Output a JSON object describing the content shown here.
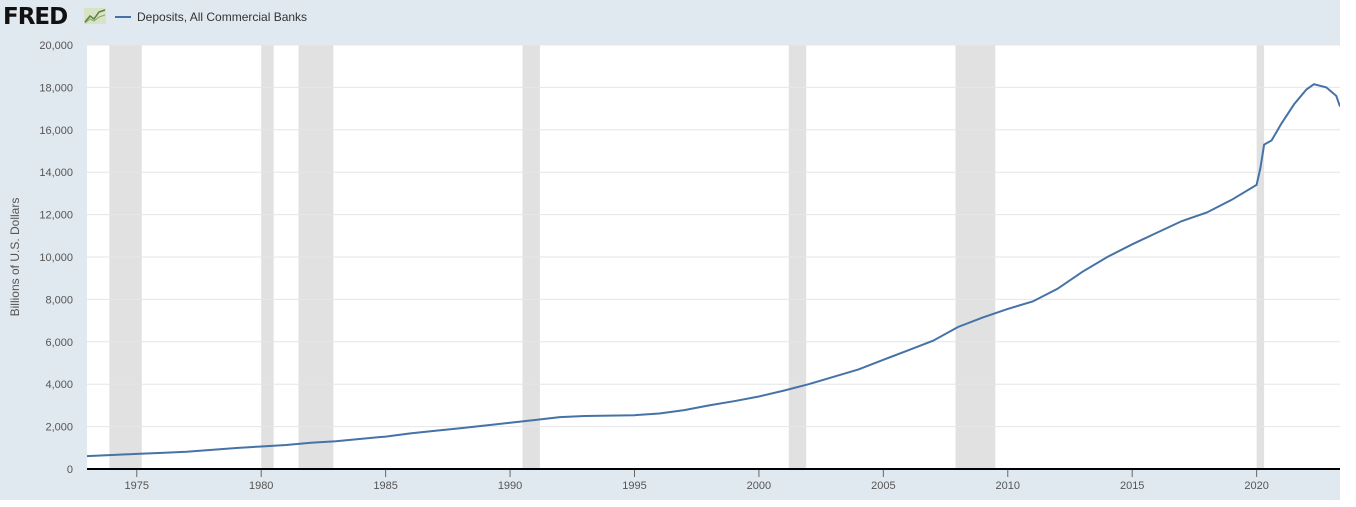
{
  "header": {
    "logo_text": "FRED",
    "logo_icon": "line-chart-icon"
  },
  "colors": {
    "series": "#4572a7",
    "recession": "#e1e1e1",
    "frame": "#e1e9f0"
  },
  "chart_data": {
    "type": "line",
    "title": "",
    "xlabel": "",
    "ylabel": "Billions of U.S. Dollars",
    "xlim": [
      1973.0,
      2023.35
    ],
    "ylim": [
      0,
      20000
    ],
    "x_ticks": [
      1975,
      1980,
      1985,
      1990,
      1995,
      2000,
      2005,
      2010,
      2015,
      2020
    ],
    "y_ticks": [
      0,
      2000,
      4000,
      6000,
      8000,
      10000,
      12000,
      14000,
      16000,
      18000,
      20000
    ],
    "y_tick_labels": [
      "0",
      "2,000",
      "4,000",
      "6,000",
      "8,000",
      "10,000",
      "12,000",
      "14,000",
      "16,000",
      "18,000",
      "20,000"
    ],
    "grid": "horizontal",
    "legend_position": "top-left",
    "recessions": [
      [
        1973.9,
        1975.2
      ],
      [
        1980.0,
        1980.5
      ],
      [
        1981.5,
        1982.9
      ],
      [
        1990.5,
        1991.2
      ],
      [
        2001.2,
        2001.9
      ],
      [
        2007.9,
        2009.5
      ],
      [
        2020.0,
        2020.3
      ]
    ],
    "series": [
      {
        "name": "Deposits, All Commercial Banks",
        "points": [
          [
            1973.0,
            610
          ],
          [
            1974.0,
            660
          ],
          [
            1975.0,
            710
          ],
          [
            1976.0,
            760
          ],
          [
            1977.0,
            810
          ],
          [
            1978.0,
            900
          ],
          [
            1979.0,
            990
          ],
          [
            1980.0,
            1060
          ],
          [
            1981.0,
            1130
          ],
          [
            1982.0,
            1240
          ],
          [
            1983.0,
            1310
          ],
          [
            1984.0,
            1420
          ],
          [
            1985.0,
            1530
          ],
          [
            1986.0,
            1680
          ],
          [
            1987.0,
            1800
          ],
          [
            1988.0,
            1920
          ],
          [
            1989.0,
            2050
          ],
          [
            1990.0,
            2180
          ],
          [
            1991.0,
            2310
          ],
          [
            1992.0,
            2450
          ],
          [
            1993.0,
            2500
          ],
          [
            1994.0,
            2520
          ],
          [
            1995.0,
            2540
          ],
          [
            1996.0,
            2620
          ],
          [
            1997.0,
            2780
          ],
          [
            1998.0,
            3000
          ],
          [
            1999.0,
            3200
          ],
          [
            2000.0,
            3420
          ],
          [
            2001.0,
            3700
          ],
          [
            2002.0,
            4000
          ],
          [
            2003.0,
            4350
          ],
          [
            2004.0,
            4700
          ],
          [
            2005.0,
            5150
          ],
          [
            2006.0,
            5600
          ],
          [
            2007.0,
            6050
          ],
          [
            2008.0,
            6700
          ],
          [
            2009.0,
            7150
          ],
          [
            2010.0,
            7550
          ],
          [
            2011.0,
            7900
          ],
          [
            2012.0,
            8500
          ],
          [
            2013.0,
            9300
          ],
          [
            2014.0,
            10000
          ],
          [
            2015.0,
            10600
          ],
          [
            2016.0,
            11150
          ],
          [
            2017.0,
            11700
          ],
          [
            2018.0,
            12100
          ],
          [
            2019.0,
            12700
          ],
          [
            2020.0,
            13400
          ],
          [
            2020.15,
            14200
          ],
          [
            2020.3,
            15300
          ],
          [
            2020.6,
            15500
          ],
          [
            2021.0,
            16300
          ],
          [
            2021.5,
            17200
          ],
          [
            2022.0,
            17900
          ],
          [
            2022.3,
            18150
          ],
          [
            2022.8,
            18000
          ],
          [
            2023.0,
            17800
          ],
          [
            2023.2,
            17600
          ],
          [
            2023.35,
            17100
          ]
        ]
      }
    ]
  }
}
